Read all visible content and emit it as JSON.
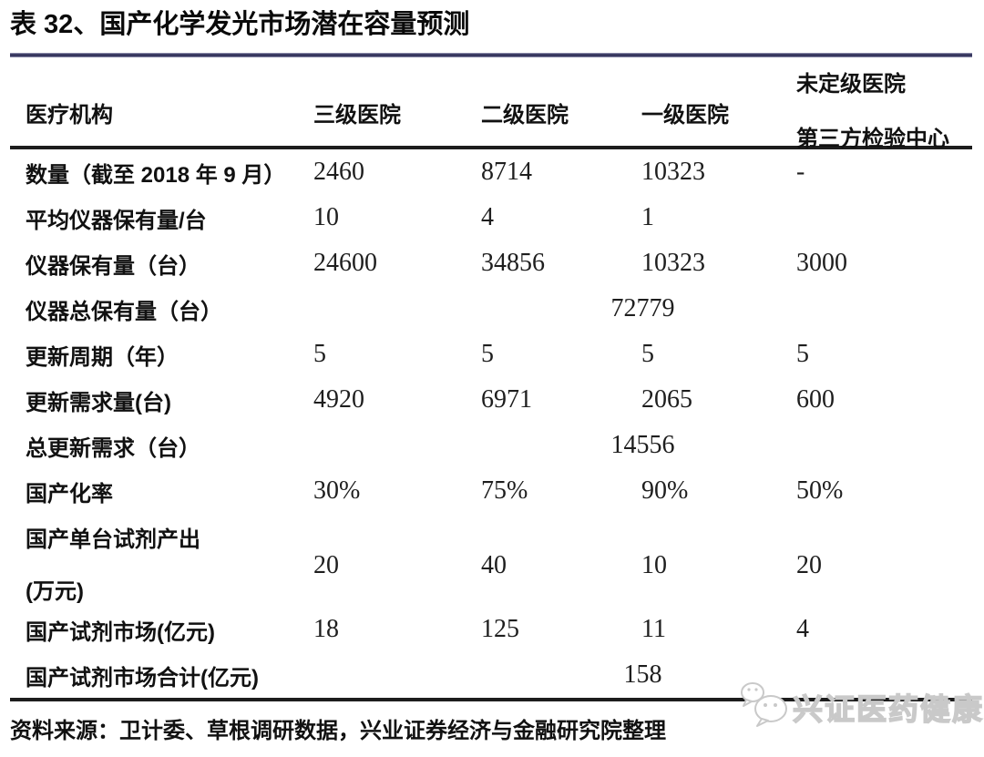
{
  "title": "表 32、国产化学发光市场潜在容量预测",
  "table": {
    "header": {
      "col1": "医疗机构",
      "col2": "三级医院",
      "col3": "二级医院",
      "col4": "一级医院",
      "col5_line1": "未定级医院",
      "col5_line2": "第三方检验中心"
    },
    "rows": [
      {
        "label": "数量（截至 2018 年 9 月）",
        "values": [
          "2460",
          "8714",
          "10323",
          "-"
        ]
      },
      {
        "label": "平均仪器保有量/台",
        "values": [
          "10",
          "4",
          "1",
          ""
        ]
      },
      {
        "label": "仪器保有量（台）",
        "values": [
          "24600",
          "34856",
          "10323",
          "3000"
        ]
      },
      {
        "label": "仪器总保有量（台）",
        "merged_value": "72779"
      },
      {
        "label": "更新周期（年）",
        "values": [
          "5",
          "5",
          "5",
          "5"
        ]
      },
      {
        "label": "更新需求量(台)",
        "values": [
          "4920",
          "6971",
          "2065",
          "600"
        ]
      },
      {
        "label": "总更新需求（台）",
        "merged_value": "14556"
      },
      {
        "label": "国产化率",
        "values": [
          "30%",
          "75%",
          "90%",
          "50%"
        ]
      },
      {
        "label": "国产单台试剂产出",
        "label_line2": "(万元)",
        "values": [
          "20",
          "40",
          "10",
          "20"
        ],
        "tall": true
      },
      {
        "label": "国产试剂市场(亿元)",
        "values": [
          "18",
          "125",
          "11",
          "4"
        ]
      },
      {
        "label": "国产试剂市场合计(亿元)",
        "merged_value": "158"
      }
    ]
  },
  "source": "资料来源：卫计委、草根调研数据，兴业证券经济与金融研究院整理",
  "watermark": {
    "text": "兴证医药健康",
    "icon": "wechat-chat-bubbles-icon"
  },
  "colors": {
    "background": "#ffffff",
    "text": "#141414",
    "accent_navy": "#32325a",
    "border_dark": "#1d1d1d",
    "watermark_gray": "#c9c9c9"
  }
}
